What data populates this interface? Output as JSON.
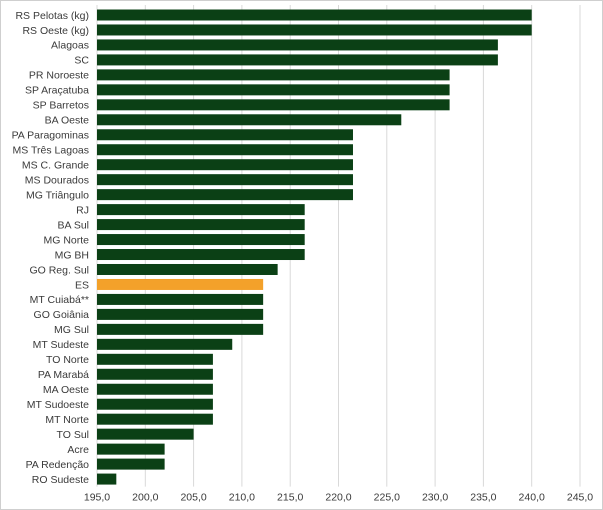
{
  "chart_data": {
    "type": "bar",
    "orientation": "horizontal",
    "title": "",
    "xlabel": "",
    "ylabel": "",
    "xlim": [
      195,
      245
    ],
    "xticks": [
      "195,0",
      "200,0",
      "205,0",
      "210,0",
      "215,0",
      "220,0",
      "225,0",
      "230,0",
      "235,0",
      "240,0",
      "245,0"
    ],
    "grid": true,
    "colors": {
      "default": "#0b4015",
      "highlight": "#f3a12a"
    },
    "highlight_category": "ES",
    "categories": [
      "RS Pelotas (kg)",
      "RS Oeste (kg)",
      "Alagoas",
      "SC",
      "PR Noroeste",
      "SP Araçatuba",
      "SP Barretos",
      "BA Oeste",
      "PA Paragominas",
      "MS Três Lagoas",
      "MS C. Grande",
      "MS Dourados",
      "MG Triângulo",
      "RJ",
      "BA Sul",
      "MG Norte",
      "MG BH",
      "GO Reg. Sul",
      "ES",
      "MT Cuiabá**",
      "GO Goiânia",
      "MG Sul",
      "MT Sudeste",
      "TO Norte",
      "PA Marabá",
      "MA Oeste",
      "MT Sudoeste",
      "MT Norte",
      "TO Sul",
      "Acre",
      "PA Redenção",
      "RO Sudeste"
    ],
    "values": [
      240.0,
      240.0,
      236.5,
      236.5,
      231.5,
      231.5,
      231.5,
      226.5,
      221.5,
      221.5,
      221.5,
      221.5,
      221.5,
      216.5,
      216.5,
      216.5,
      216.5,
      213.7,
      212.2,
      212.2,
      212.2,
      212.2,
      209.0,
      207.0,
      207.0,
      207.0,
      207.0,
      207.0,
      205.0,
      202.0,
      202.0,
      197.0
    ]
  }
}
